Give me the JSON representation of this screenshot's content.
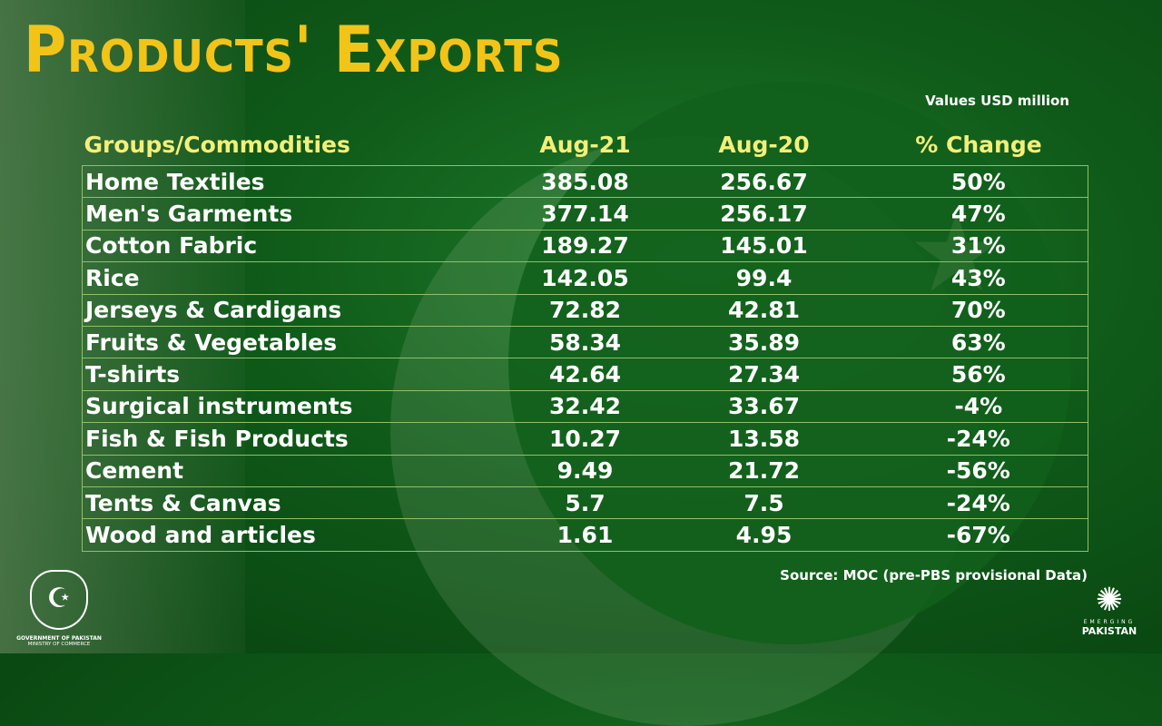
{
  "title": "Products' Exports",
  "units_note": "Values USD million",
  "source": "Source: MOC (pre-PBS provisional Data)",
  "logos": {
    "left": {
      "line1": "GOVERNMENT OF PAKISTAN",
      "line2": "MINISTRY OF COMMERCE"
    },
    "right": {
      "line1": "EMERGING",
      "line2": "PAKISTAN"
    }
  },
  "colors": {
    "title": "#f2c418",
    "header": "#f3ef7a",
    "grid": "#8fbf6a",
    "background": "#0f5a19"
  },
  "chart_data": {
    "type": "table",
    "title": "Products' Exports",
    "columns": [
      "Groups/Commodities",
      "Aug-21",
      "Aug-20",
      "% Change"
    ],
    "rows": [
      [
        "Home Textiles",
        "385.08",
        "256.67",
        "50%"
      ],
      [
        "Men's Garments",
        "377.14",
        "256.17",
        "47%"
      ],
      [
        "Cotton Fabric",
        "189.27",
        "145.01",
        "31%"
      ],
      [
        "Rice",
        "142.05",
        "99.4",
        "43%"
      ],
      [
        "Jerseys & Cardigans",
        "72.82",
        "42.81",
        "70%"
      ],
      [
        "Fruits & Vegetables",
        "58.34",
        "35.89",
        "63%"
      ],
      [
        "T-shirts",
        "42.64",
        "27.34",
        "56%"
      ],
      [
        "Surgical instruments",
        "32.42",
        "33.67",
        "-4%"
      ],
      [
        "Fish & Fish Products",
        "10.27",
        "13.58",
        "-24%"
      ],
      [
        "Cement",
        "9.49",
        "21.72",
        "-56%"
      ],
      [
        "Tents & Canvas",
        "5.7",
        "7.5",
        "-24%"
      ],
      [
        "Wood and articles",
        "1.61",
        "4.95",
        "-67%"
      ]
    ]
  }
}
